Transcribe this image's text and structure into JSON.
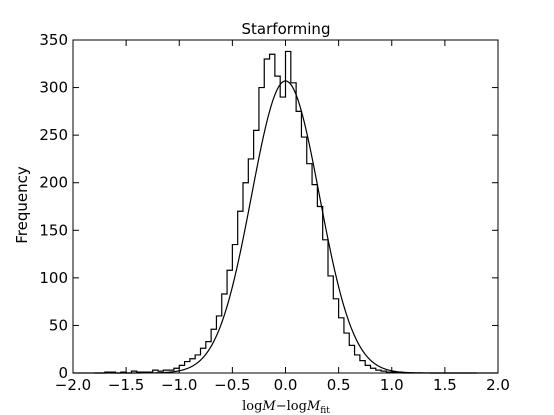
{
  "chart_data": {
    "type": "histogram",
    "title": "Starforming",
    "ylabel": "Frequency",
    "xlabel": {
      "pre": "log",
      "M1": "M",
      "mid": "−log",
      "M2": "M",
      "sub": "fit"
    },
    "xlim": [
      -2.0,
      2.0
    ],
    "ylim": [
      0,
      350
    ],
    "xticks": [
      -2.0,
      -1.5,
      -1.0,
      -0.5,
      0.0,
      0.5,
      1.0,
      1.5,
      2.0
    ],
    "xtick_labels": [
      "−2.0",
      "−1.5",
      "−1.0",
      "−0.5",
      "0.0",
      "0.5",
      "1.0",
      "1.5",
      "2.0"
    ],
    "yticks": [
      0,
      50,
      100,
      150,
      200,
      250,
      300,
      350
    ],
    "ytick_labels": [
      "0",
      "50",
      "100",
      "150",
      "200",
      "250",
      "300",
      "350"
    ],
    "bin_width": 0.05,
    "bin_start": -1.8,
    "counts": [
      0,
      0,
      1,
      1,
      0,
      1,
      0,
      2,
      1,
      1,
      1,
      3,
      2,
      3,
      3,
      5,
      8,
      12,
      15,
      19,
      26,
      33,
      46,
      60,
      83,
      108,
      135,
      170,
      200,
      225,
      255,
      300,
      330,
      335,
      312,
      290,
      338,
      305,
      275,
      248,
      220,
      198,
      175,
      140,
      102,
      78,
      58,
      42,
      29,
      19,
      13,
      8,
      5,
      3,
      2,
      1,
      1,
      1,
      0,
      0,
      0,
      0,
      0,
      0,
      0,
      0,
      0,
      0,
      0,
      0,
      0,
      0
    ],
    "fit_curve": {
      "type": "gaussian",
      "amplitude": 307,
      "mean": 0.0,
      "sigma": 0.32
    },
    "grid": false,
    "legend": "none"
  }
}
